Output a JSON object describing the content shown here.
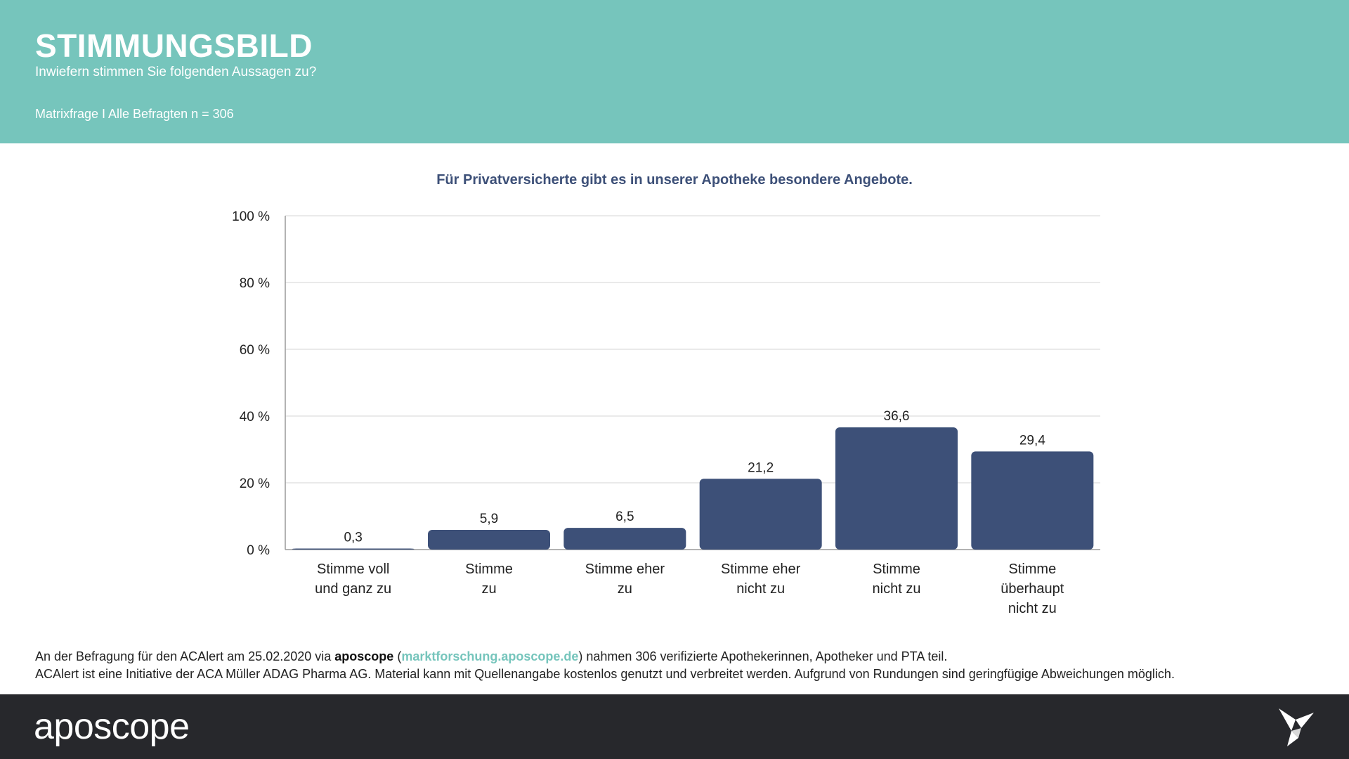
{
  "header": {
    "title": "STIMMUNGSBILD",
    "subtitle": "Inwiefern stimmen Sie folgenden Aussagen zu?",
    "sample": "Matrixfrage I Alle Befragten n = 306"
  },
  "chart_data": {
    "type": "bar",
    "title": "Für Privatversicherte gibt es in unserer Apotheke besondere Angebote.",
    "categories": [
      [
        "Stimme voll",
        "und ganz zu"
      ],
      [
        "Stimme",
        "zu"
      ],
      [
        "Stimme eher",
        "zu"
      ],
      [
        "Stimme eher",
        "nicht zu"
      ],
      [
        "Stimme",
        "nicht zu"
      ],
      [
        "Stimme",
        "überhaupt",
        "nicht zu"
      ]
    ],
    "values": [
      0.3,
      5.9,
      6.5,
      21.2,
      36.6,
      29.4
    ],
    "value_labels": [
      "0,3",
      "5,9",
      "6,5",
      "21,2",
      "36,6",
      "29,4"
    ],
    "ylim": [
      0,
      100
    ],
    "yticks": [
      0,
      20,
      40,
      60,
      80,
      100
    ],
    "ytick_labels": [
      "0 %",
      "20 %",
      "40 %",
      "60 %",
      "80 %",
      "100 %"
    ],
    "grid": true,
    "bar_color": "#3d5078"
  },
  "footnote": {
    "line1_pre": "An der Befragung für den ACAlert am 25.02.2020 via ",
    "line1_brand": "aposcope",
    "line1_open": " (",
    "line1_link": "marktforschung.aposcope.de",
    "line1_post": ") nahmen 306 verifizierte Apothekerinnen, Apotheker und PTA teil.",
    "line2": "ACAlert ist eine Initiative der ACA Müller ADAG Pharma AG. Material kann mit Quellenangabe kostenlos genutzt und verbreitet werden. Aufgrund von Rundungen sind geringfügige Abweichungen möglich."
  },
  "footer": {
    "logo": "aposcope"
  },
  "colors": {
    "header_bg": "#76c5bc",
    "footer_bg": "#27282c",
    "accent": "#76c5bc",
    "bar": "#3d5078"
  },
  "icons": {
    "footer_right": "bird-icon"
  }
}
